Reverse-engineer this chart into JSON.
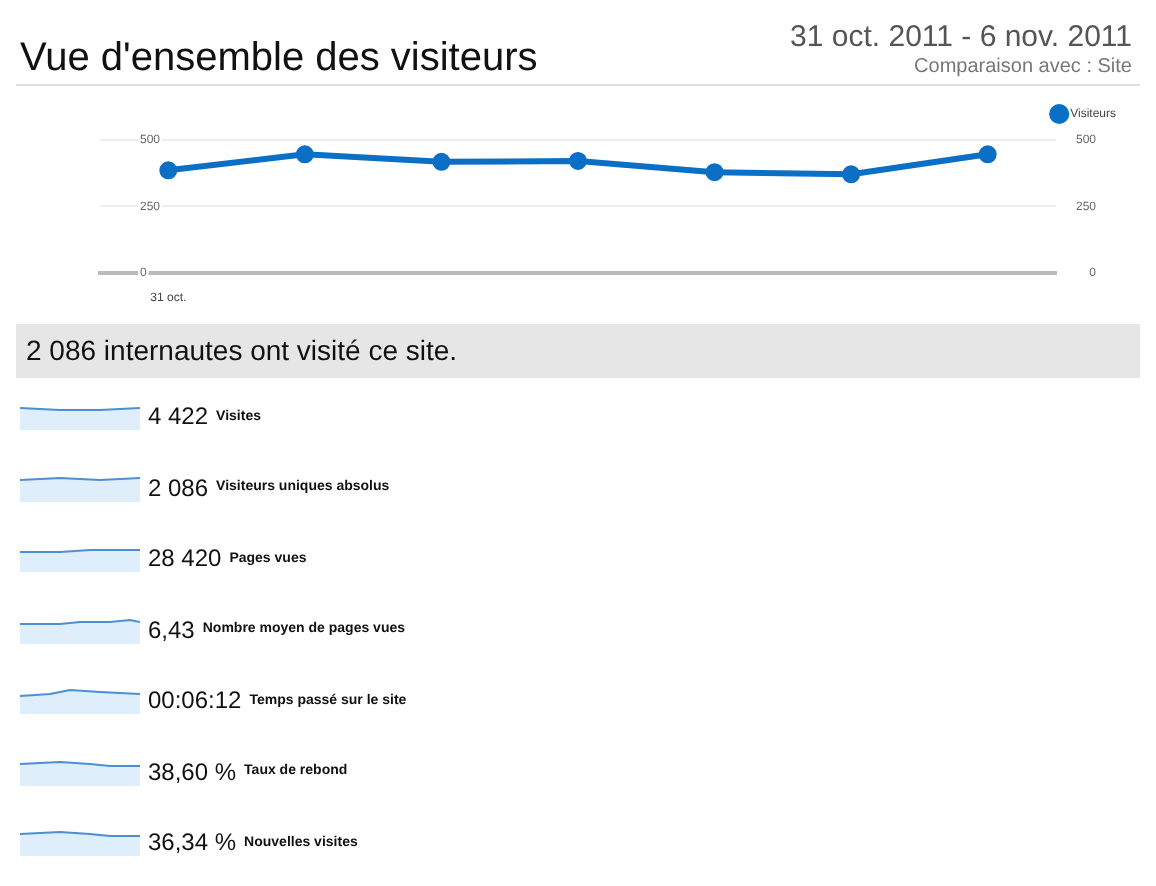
{
  "chart_data": {
    "type": "line",
    "title": "Vue d'ensemble des visiteurs",
    "subtitle": "31 oct. 2011 - 6 nov. 2011",
    "categories": [
      "31 oct.",
      null,
      null,
      null,
      null,
      null,
      null
    ],
    "series": [
      {
        "name": "Visiteurs",
        "color": "#0b6fc6",
        "values": [
          386,
          446,
          418,
          421,
          379,
          371,
          446
        ]
      }
    ],
    "ylim": [
      0,
      500
    ],
    "yticks": [
      0,
      250,
      500
    ],
    "y2lim": [
      0,
      500
    ],
    "y2ticks": [
      0,
      250,
      500
    ],
    "grid": "y",
    "legend": "top right",
    "marker": "circle",
    "line_style": "solid",
    "annotations": [
      "Comparaison avec : Site",
      "2 086 internautes ont visité ce site.",
      "4 422",
      "Visites",
      "2 086",
      "Visiteurs uniques absolus",
      "28 420",
      "Pages vues",
      "6,43",
      "Nombre moyen de pages vues",
      "00:06:12",
      "Temps passé sur le site",
      "38,60 %",
      "Taux de rebond",
      "36,34 %",
      "Nouvelles visites"
    ]
  }
}
